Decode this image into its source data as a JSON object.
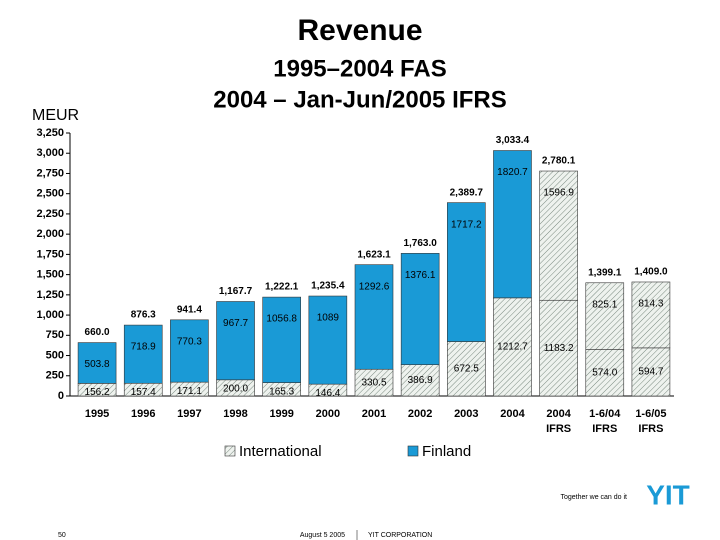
{
  "chart_data": {
    "type": "stacked_bar",
    "title": "Revenue",
    "subtitle": [
      "1995–2004 FAS",
      "2004 – Jan-Jun/2005 IFRS"
    ],
    "y_label": "MEUR",
    "categories": [
      "1995",
      "1996",
      "1997",
      "1998",
      "1999",
      "2000",
      "2001",
      "2002",
      "2003",
      "2004",
      "2004 IFRS",
      "1-6/04 IFRS",
      "1-6/05 IFRS"
    ],
    "series": [
      {
        "name": "International",
        "color": "url(#hatch)",
        "values": [
          156.2,
          157.4,
          171.1,
          200.0,
          165.3,
          146.4,
          330.5,
          386.9,
          672.5,
          1212.7,
          1183.2,
          574.0,
          594.7
        ],
        "value_labels": [
          "156.2",
          "157.4",
          "171.1",
          "200.0",
          "165.3",
          "146.4",
          "330.5",
          "386.9",
          "672.5",
          "1212.7",
          "1183.2",
          "574.0",
          "594.7"
        ]
      },
      {
        "name": "Finland",
        "color": "#1a9ad6",
        "colors": [
          "#1a9ad6",
          "#1a9ad6",
          "#1a9ad6",
          "#1a9ad6",
          "#1a9ad6",
          "#1a9ad6",
          "#1a9ad6",
          "#1a9ad6",
          "#1a9ad6",
          "#1a9ad6",
          "url(#hatch)",
          "url(#hatch)",
          "url(#hatch)"
        ],
        "values": [
          503.8,
          718.9,
          770.3,
          967.7,
          1056.8,
          1089,
          1292.6,
          1376.1,
          1717.2,
          1820.7,
          1596.9,
          825.1,
          814.3
        ],
        "value_labels": [
          "503.8",
          "718.9",
          "770.3",
          "967.7",
          "1056.8",
          "1089",
          "1292.6",
          "1376.1",
          "1717.2",
          "1820.7",
          "1596.9",
          "825.1",
          "814.3"
        ]
      }
    ],
    "totals": [
      660.0,
      876.3,
      941.4,
      1167.7,
      1222.1,
      1235.4,
      1623.1,
      1763.0,
      2389.7,
      3033.4,
      2780.1,
      1399.1,
      1409.0
    ],
    "total_labels": [
      "660.0",
      "876.3",
      "941.4",
      "1,167.7",
      "1,222.1",
      "1,235.4",
      "1,623.1",
      "1,763.0",
      "2,389.7",
      "3,033.4",
      "2,780.1",
      "1,399.1",
      "1,409.0"
    ],
    "ylim": [
      0,
      3250
    ],
    "yticks": [
      0,
      250,
      500,
      750,
      {
        "value": 1000,
        "label": "1,000"
      },
      {
        "value": 1250,
        "label": "1,250"
      },
      {
        "value": 1500,
        "label": "1,500"
      },
      {
        "value": 1750,
        "label": "1,750"
      },
      {
        "value": 2000,
        "label": "2,000"
      },
      {
        "value": 2250,
        "label": "2,250"
      },
      {
        "value": 2500,
        "label": "2,500"
      },
      {
        "value": 2750,
        "label": "2,750"
      },
      {
        "value": 3000,
        "label": "3,000"
      },
      {
        "value": 3250,
        "label": "3,250"
      }
    ],
    "grid": false
  },
  "footer": {
    "slogan": "Together we can do it",
    "logo": "YIT",
    "page": "50",
    "date": "August 5 2005",
    "company": "YIT CORPORATION"
  }
}
